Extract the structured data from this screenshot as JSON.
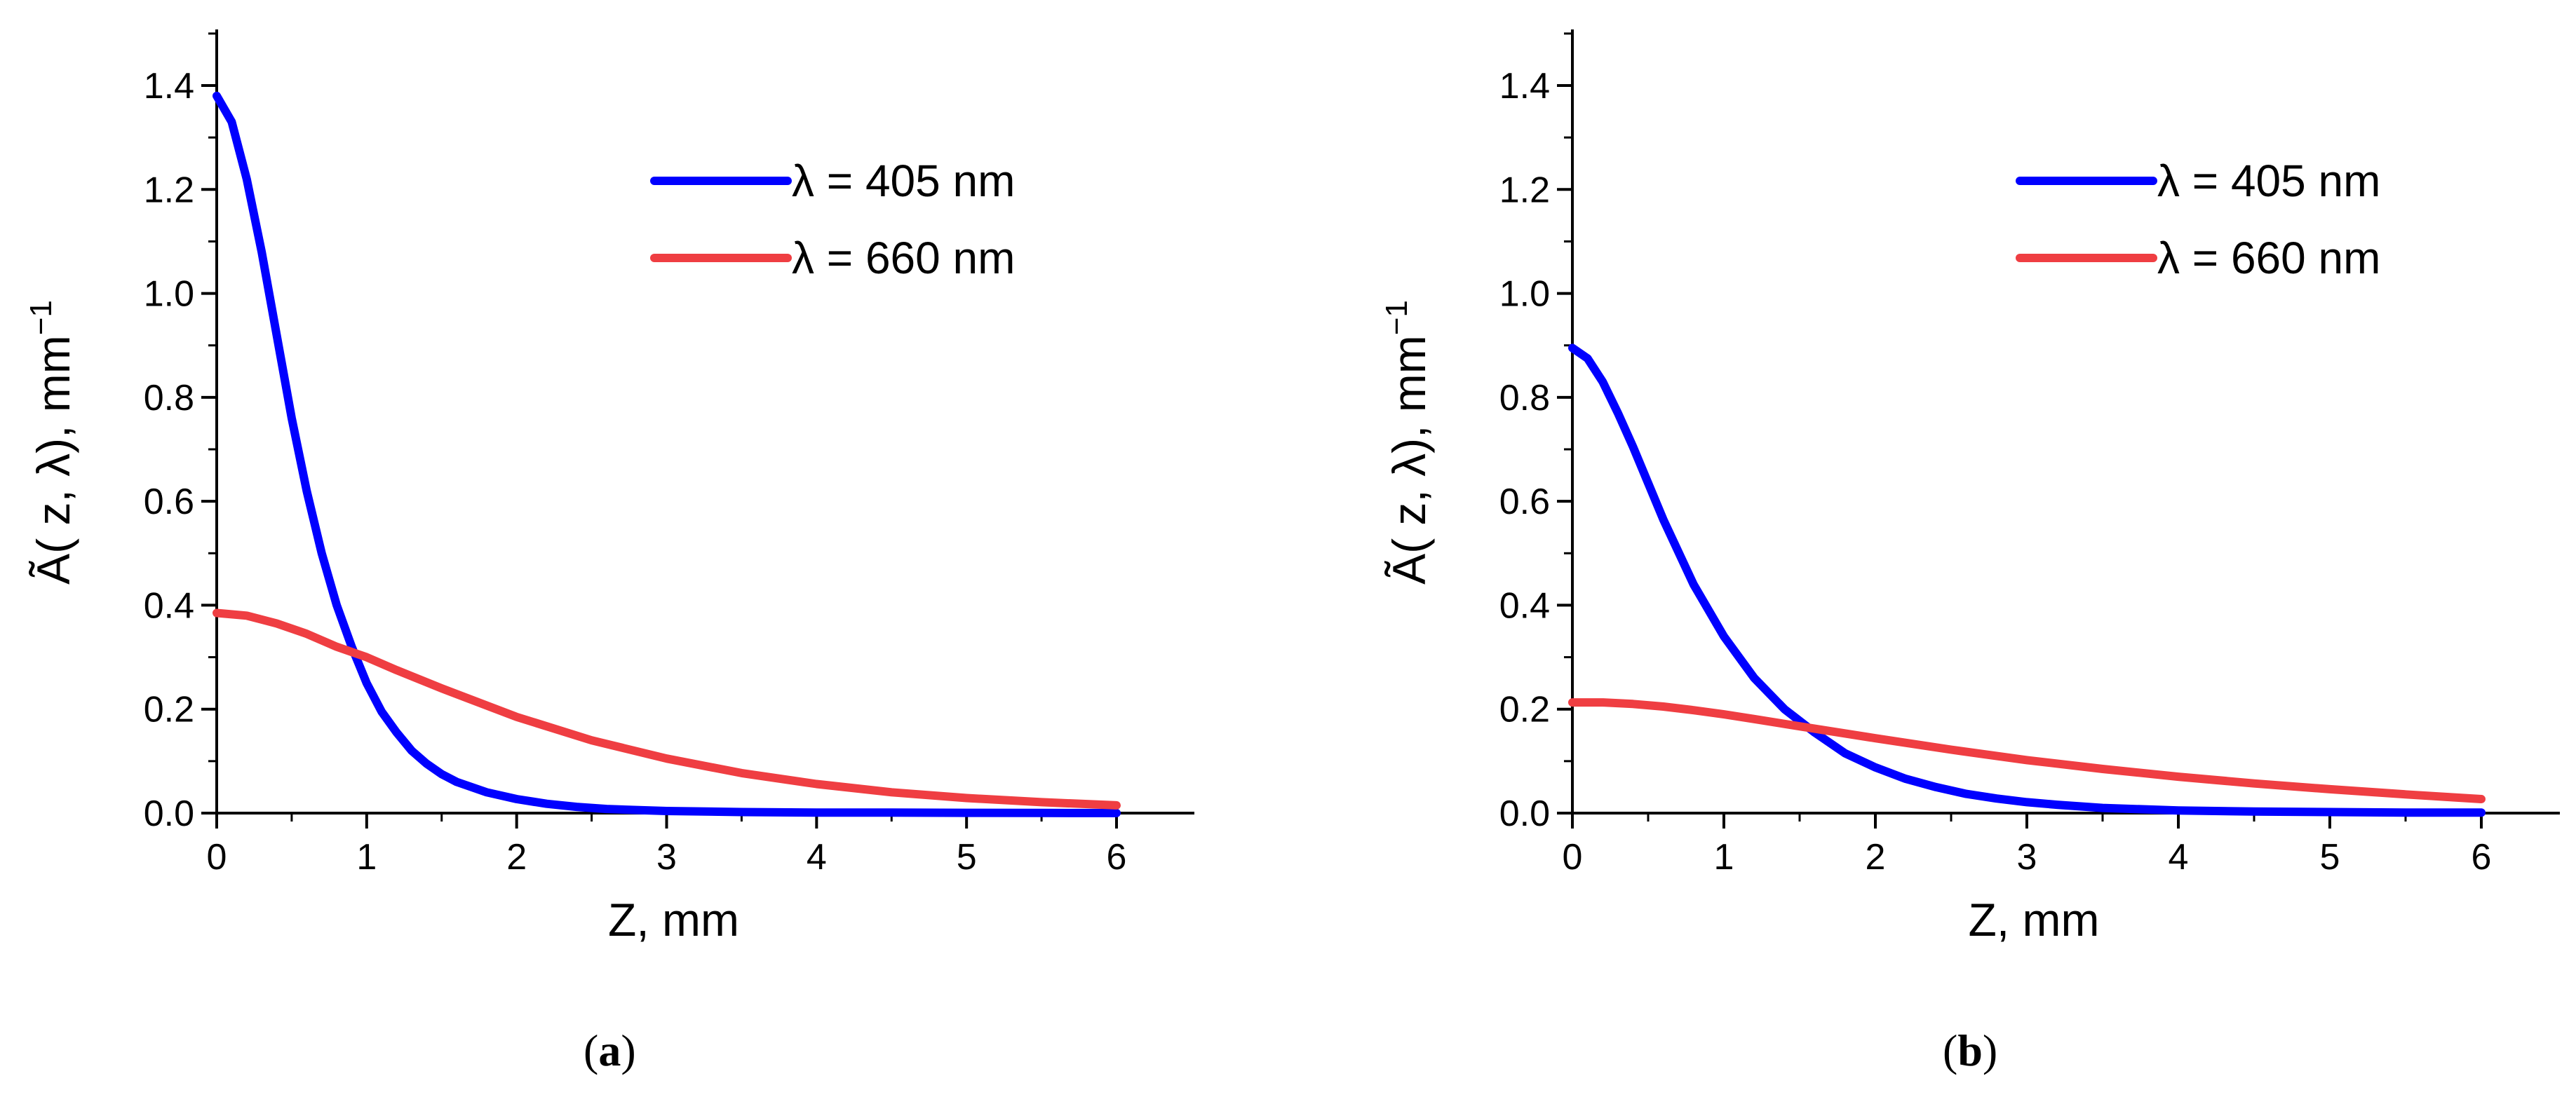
{
  "chart_data": [
    {
      "type": "line",
      "panel": "a",
      "caption_letter": "a",
      "xlabel": "Z, mm",
      "ylabel_base": "Ã( z, λ), mm",
      "ylabel_sup": "−1",
      "xlim": [
        0,
        6.5
      ],
      "ylim": [
        0,
        1.5
      ],
      "xticks": [
        0,
        1,
        2,
        3,
        4,
        5,
        6
      ],
      "yticks": [
        0.0,
        0.2,
        0.4,
        0.6,
        0.8,
        1.0,
        1.2,
        1.4
      ],
      "xtick_labels": [
        "0",
        "1",
        "2",
        "3",
        "4",
        "5",
        "6"
      ],
      "ytick_labels": [
        "0.0",
        "0.2",
        "0.4",
        "0.6",
        "0.8",
        "1.0",
        "1.2",
        "1.4"
      ],
      "legend_position": "top-right",
      "series": [
        {
          "name": "λ = 405 nm",
          "color": "#0000ff",
          "x": [
            0,
            0.1,
            0.2,
            0.3,
            0.4,
            0.5,
            0.6,
            0.7,
            0.8,
            0.9,
            1.0,
            1.1,
            1.2,
            1.3,
            1.4,
            1.5,
            1.6,
            1.8,
            2.0,
            2.2,
            2.4,
            2.6,
            2.8,
            3.0,
            3.5,
            4.0,
            4.5,
            5.0,
            5.5,
            6.0
          ],
          "y": [
            1.38,
            1.33,
            1.22,
            1.08,
            0.92,
            0.76,
            0.62,
            0.5,
            0.4,
            0.32,
            0.25,
            0.195,
            0.155,
            0.12,
            0.095,
            0.075,
            0.06,
            0.04,
            0.027,
            0.018,
            0.012,
            0.008,
            0.006,
            0.004,
            0.002,
            0.001,
            0.001,
            0.0005,
            0.0003,
            0.0002
          ]
        },
        {
          "name": "λ = 660 nm",
          "color": "#ef3e42",
          "x": [
            0,
            0.2,
            0.4,
            0.6,
            0.8,
            1.0,
            1.2,
            1.5,
            2.0,
            2.5,
            3.0,
            3.5,
            4.0,
            4.5,
            5.0,
            5.5,
            6.0
          ],
          "y": [
            0.385,
            0.38,
            0.365,
            0.345,
            0.32,
            0.3,
            0.275,
            0.24,
            0.185,
            0.14,
            0.105,
            0.077,
            0.056,
            0.04,
            0.029,
            0.021,
            0.015
          ]
        }
      ]
    },
    {
      "type": "line",
      "panel": "b",
      "caption_letter": "b",
      "xlabel": "Z, mm",
      "ylabel_base": "Ã( z, λ), mm",
      "ylabel_sup": "−1",
      "xlim": [
        0,
        6.5
      ],
      "ylim": [
        0,
        1.5
      ],
      "xticks": [
        0,
        1,
        2,
        3,
        4,
        5,
        6
      ],
      "yticks": [
        0.0,
        0.2,
        0.4,
        0.6,
        0.8,
        1.0,
        1.2,
        1.4
      ],
      "xtick_labels": [
        "0",
        "1",
        "2",
        "3",
        "4",
        "5",
        "6"
      ],
      "ytick_labels": [
        "0.0",
        "0.2",
        "0.4",
        "0.6",
        "0.8",
        "1.0",
        "1.2",
        "1.4"
      ],
      "legend_position": "top-right",
      "series": [
        {
          "name": "λ = 405 nm",
          "color": "#0000ff",
          "x": [
            0,
            0.1,
            0.2,
            0.3,
            0.4,
            0.5,
            0.6,
            0.8,
            1.0,
            1.2,
            1.4,
            1.6,
            1.8,
            2.0,
            2.2,
            2.4,
            2.6,
            2.8,
            3.0,
            3.2,
            3.5,
            4.0,
            4.5,
            5.0,
            5.5,
            6.0
          ],
          "y": [
            0.895,
            0.875,
            0.83,
            0.77,
            0.705,
            0.635,
            0.565,
            0.44,
            0.34,
            0.26,
            0.2,
            0.155,
            0.115,
            0.088,
            0.066,
            0.05,
            0.037,
            0.028,
            0.021,
            0.016,
            0.01,
            0.005,
            0.003,
            0.002,
            0.001,
            0.001
          ]
        },
        {
          "name": "λ = 660 nm",
          "color": "#ef3e42",
          "x": [
            0,
            0.2,
            0.4,
            0.6,
            0.8,
            1.0,
            1.2,
            1.5,
            2.0,
            2.5,
            3.0,
            3.5,
            4.0,
            4.5,
            5.0,
            5.5,
            6.0
          ],
          "y": [
            0.213,
            0.213,
            0.21,
            0.205,
            0.198,
            0.19,
            0.181,
            0.167,
            0.144,
            0.122,
            0.102,
            0.085,
            0.07,
            0.057,
            0.046,
            0.036,
            0.027
          ]
        }
      ]
    }
  ]
}
